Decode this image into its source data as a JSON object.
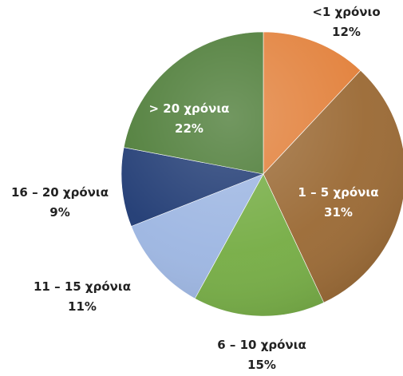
{
  "chart_data": {
    "type": "pie",
    "start_angle_deg": 0,
    "direction": "clockwise",
    "slices": [
      {
        "label": "<1 χρόνιο",
        "value": 12,
        "value_label": "12%",
        "color": "#E2803A",
        "label_color": "#222222"
      },
      {
        "label": "1 – 5 χρόνια",
        "value": 31,
        "value_label": "31%",
        "color": "#9B6A35",
        "label_color": "#ffffff"
      },
      {
        "label": "6 – 10 χρόνια",
        "value": 15,
        "value_label": "15%",
        "color": "#76AD45",
        "label_color": "#222222"
      },
      {
        "label": "11 – 15 χρόνια",
        "value": 11,
        "value_label": "11%",
        "color": "#9DB6E2",
        "label_color": "#222222"
      },
      {
        "label": "16 – 20 χρόνια",
        "value": 9,
        "value_label": "9%",
        "color": "#1F3A73",
        "label_color": "#222222"
      },
      {
        "label": "> 20 χρόνια",
        "value": 22,
        "value_label": "22%",
        "color": "#4A7A34",
        "label_color": "#ffffff"
      }
    ]
  }
}
